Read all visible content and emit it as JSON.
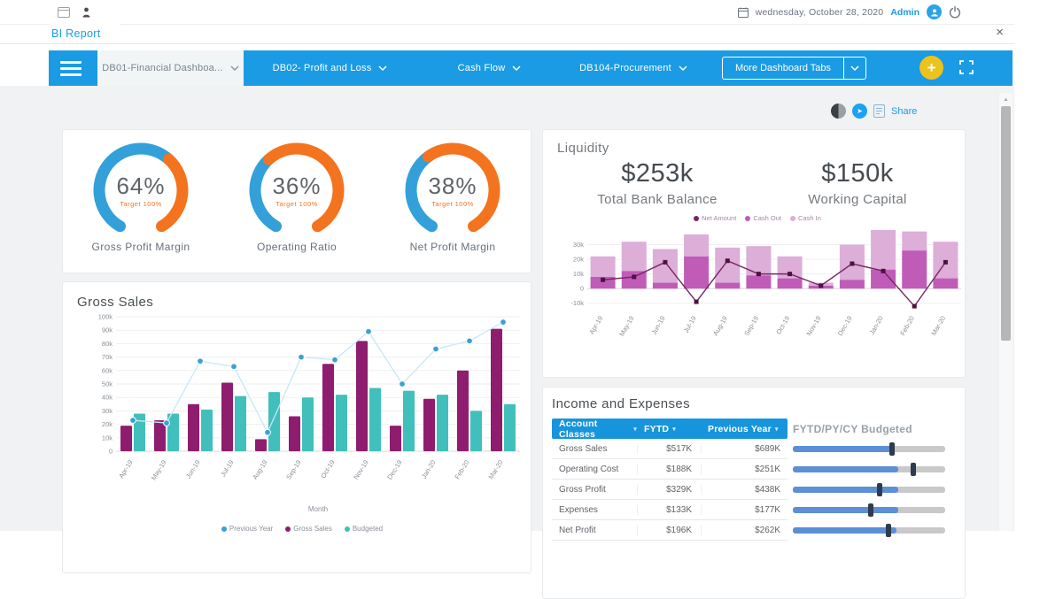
{
  "chrome": {
    "date_label": "wednesday, October 28, 2020",
    "user_label": "Admin",
    "page_title": "BI Report",
    "close_label": "×",
    "scroll_up_glyph": "▲",
    "share_arrow_glyph": "➤"
  },
  "nav": {
    "tabs": [
      {
        "label": "DB01-Financial Dashboa..."
      },
      {
        "label": "DB02- Profit and Loss"
      },
      {
        "label": "Cash Flow"
      },
      {
        "label": "DB104-Procurement"
      }
    ],
    "more_tabs_label": "More Dashboard Tabs",
    "add_label": "+"
  },
  "share": {
    "label": "Share"
  },
  "gauges": {
    "colors": {
      "value": "#33a0da",
      "remainder": "#f4731f"
    },
    "items": [
      {
        "value_pct": 64,
        "value_label": "64%",
        "target_label": "Target 100%",
        "title": "Gross Profit Margin"
      },
      {
        "value_pct": 36,
        "value_label": "36%",
        "target_label": "Target 100%",
        "title": "Operating Ratio"
      },
      {
        "value_pct": 38,
        "value_label": "38%",
        "target_label": "Target 100%",
        "title": "Net Profit Margin"
      }
    ]
  },
  "liquidity": {
    "title": "Liquidity",
    "kpis": [
      {
        "value": "$253k",
        "label": "Total Bank Balance"
      },
      {
        "value": "$150k",
        "label": "Working Capital"
      }
    ],
    "legend": [
      {
        "label": "Net Amount",
        "color": "#7a2364"
      },
      {
        "label": "Cash Out",
        "color": "#c05cb8"
      },
      {
        "label": "Cash In",
        "color": "#dcaed8"
      }
    ]
  },
  "gross_sales": {
    "title": "Gross Sales",
    "xlabel": "Month",
    "legend": [
      {
        "label": "Previous Year",
        "color": "#3da0d4"
      },
      {
        "label": "Gross Sales",
        "color": "#8e1d6f"
      },
      {
        "label": "Budgeted",
        "color": "#41bfbc"
      }
    ]
  },
  "income_expenses": {
    "title": "Income and Expenses",
    "columns": [
      "Account Classes",
      "FYTD",
      "Previous Year"
    ],
    "sort_glyph": "▾",
    "slider_header": "FYTD/PY/CY Budgeted",
    "rows": [
      {
        "account": "Gross Sales",
        "fytd": "$517K",
        "previous_year": "$689K",
        "fill_pct": 66,
        "handle_pct": 65
      },
      {
        "account": "Operating Cost",
        "fytd": "$188K",
        "previous_year": "$251K",
        "fill_pct": 69,
        "handle_pct": 79
      },
      {
        "account": "Gross Profit",
        "fytd": "$329K",
        "previous_year": "$438K",
        "fill_pct": 69,
        "handle_pct": 57
      },
      {
        "account": "Expenses",
        "fytd": "$133K",
        "previous_year": "$177K",
        "fill_pct": 69,
        "handle_pct": 51
      },
      {
        "account": "Net Profit",
        "fytd": "$196K",
        "previous_year": "$262K",
        "fill_pct": 68,
        "handle_pct": 63
      }
    ]
  },
  "chart_data": [
    {
      "id": "liquidity_cashflow",
      "type": "bar+line",
      "unit": "k",
      "categories": [
        "Apr-19",
        "May-19",
        "Jun-19",
        "Jul-19",
        "Aug-19",
        "Sep-19",
        "Oct-19",
        "Nov-19",
        "Dec-19",
        "Jan-20",
        "Feb-20",
        "Mar-20"
      ],
      "series": [
        {
          "name": "Net Amount",
          "type": "line",
          "color": "#7a2364",
          "marker_color": "#4a1340",
          "values": [
            6,
            8,
            18,
            -9,
            19,
            10,
            10,
            2,
            17,
            12,
            -12,
            18
          ]
        },
        {
          "name": "Cash Out",
          "type": "bar-stack",
          "color": "#c05cb8",
          "values": [
            8,
            12,
            4,
            22,
            4,
            9,
            7,
            2,
            6,
            13,
            26,
            7
          ]
        },
        {
          "name": "Cash In",
          "type": "bar-stack",
          "color": "#dcaed8",
          "values": [
            14,
            20,
            23,
            15,
            24,
            20,
            15,
            2,
            24,
            27,
            13,
            25
          ]
        }
      ],
      "ylim": [
        -15,
        43
      ],
      "yticks": [
        -10,
        0,
        10,
        20,
        30
      ],
      "ytick_labels": [
        "-10k",
        "0",
        "10k",
        "20k",
        "30k"
      ],
      "legend_position": "top",
      "grid": true
    },
    {
      "id": "gross_sales",
      "type": "bar+line",
      "unit": "k",
      "title": "Gross Sales",
      "xlabel": "Month",
      "categories": [
        "Apr-19",
        "May-19",
        "Jun-19",
        "Jul-19",
        "Aug-19",
        "Sep-19",
        "Oct-19",
        "Nov-19",
        "Dec-19",
        "Jan-20",
        "Feb-20",
        "Mar-20"
      ],
      "series": [
        {
          "name": "Previous Year",
          "type": "line",
          "color": "#c5e8f6",
          "marker_color": "#3da0d4",
          "values": [
            23,
            21,
            67,
            63,
            14,
            70,
            68,
            89,
            50,
            76,
            82,
            96
          ]
        },
        {
          "name": "Gross Sales",
          "type": "bar",
          "color": "#8e1d6f",
          "values": [
            19,
            23,
            35,
            51,
            9,
            26,
            65,
            82,
            19,
            39,
            60,
            91
          ]
        },
        {
          "name": "Budgeted",
          "type": "bar",
          "color": "#41bfbc",
          "values": [
            28,
            28,
            31,
            41,
            44,
            40,
            42,
            47,
            45,
            42,
            30,
            35
          ]
        }
      ],
      "ylim": [
        0,
        100
      ],
      "yticks": [
        0,
        10,
        20,
        30,
        40,
        50,
        60,
        70,
        80,
        90,
        100
      ],
      "ytick_labels": [
        "0",
        "10k",
        "20k",
        "30k",
        "40k",
        "50k",
        "60k",
        "70k",
        "80k",
        "90k",
        "100k"
      ],
      "legend_position": "bottom",
      "grid": true
    }
  ],
  "colors": {
    "nav_blue": "#1a9be4",
    "accent_yellow": "#eec21c",
    "table_header_blue": "#1795dc",
    "slider_fill": "#5b8fd6",
    "slider_track": "#c9c9c9",
    "slider_handle": "#2e3a4e"
  }
}
